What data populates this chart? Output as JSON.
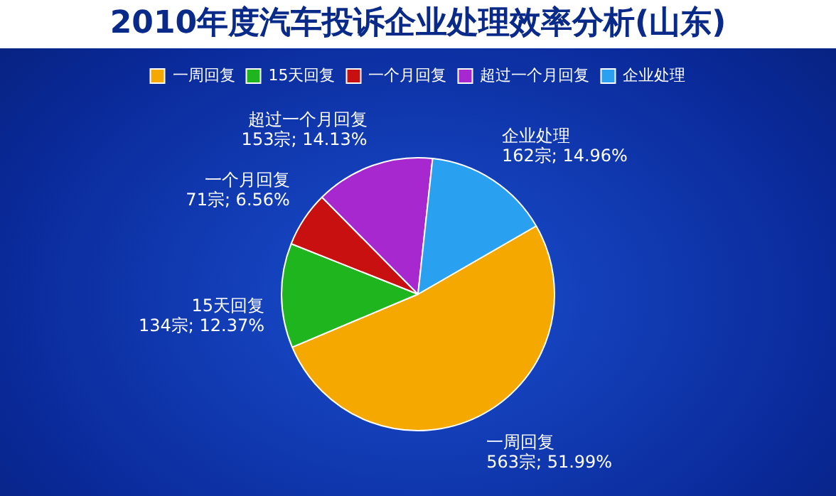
{
  "chart_data": {
    "type": "pie",
    "title": "2010年度汽车投诉企业处理效率分析(山东)",
    "categories": [
      "一周回复",
      "15天回复",
      "一个月回复",
      "超过一个月回复",
      "企业处理"
    ],
    "values": [
      563,
      134,
      71,
      153,
      162
    ],
    "colors": [
      "#f5a800",
      "#1fb51f",
      "#c81010",
      "#a828d0",
      "#2aa0f0"
    ],
    "value_labels": [
      "563宗; 51.99%",
      "134宗; 12.37%",
      "71宗; 6.56%",
      "153宗; 14.13%",
      "162宗; 14.96%"
    ],
    "legend": "top"
  }
}
